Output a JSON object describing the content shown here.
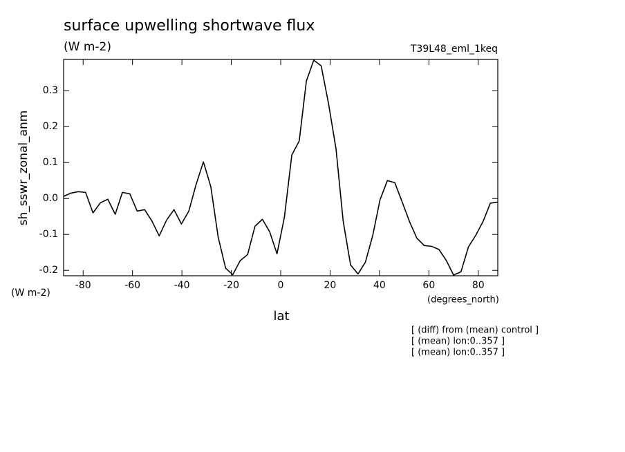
{
  "chart_data": {
    "type": "line",
    "title": "surface upwelling shortwave flux",
    "subtitle": "(W m-2)",
    "dataset": "T39L48_eml_1keq",
    "ylabel": "sh_sswr_zonal_anm",
    "yunits": "(W m-2)",
    "xlabel": "lat",
    "xunits": "(degrees_north)",
    "notes": [
      "[ (diff) from (mean) control ]",
      "[ (mean) lon:0..357 ]",
      "[ (mean) lon:0..357 ]"
    ],
    "x": [
      -87.9,
      -84.9,
      -81.9,
      -79,
      -76,
      -73,
      -70,
      -67,
      -64.1,
      -61.1,
      -58.1,
      -55.1,
      -52.1,
      -49.2,
      -46.2,
      -43.2,
      -40.2,
      -37.2,
      -34.3,
      -31.3,
      -28.3,
      -25.3,
      -22.3,
      -19.4,
      -16.4,
      -13.4,
      -10.4,
      -7.4,
      -4.5,
      -1.5,
      1.5,
      4.5,
      7.5,
      10.4,
      13.4,
      16.4,
      19.4,
      22.4,
      25.3,
      28.3,
      31.3,
      34.3,
      37.3,
      40.2,
      43.2,
      46.2,
      49.2,
      52.2,
      55.1,
      58.1,
      61.1,
      64.1,
      67.1,
      70,
      73,
      76,
      79,
      82,
      84.9,
      87.9
    ],
    "series": [
      {
        "color": "#000000",
        "values": [
          0.006,
          0.015,
          0.019,
          0.017,
          -0.04,
          -0.012,
          -0.002,
          -0.044,
          0.017,
          0.013,
          -0.035,
          -0.031,
          -0.063,
          -0.104,
          -0.06,
          -0.031,
          -0.071,
          -0.035,
          0.038,
          0.102,
          0.033,
          -0.108,
          -0.194,
          -0.212,
          -0.173,
          -0.156,
          -0.077,
          -0.058,
          -0.092,
          -0.154,
          -0.052,
          0.121,
          0.16,
          0.327,
          0.385,
          0.369,
          0.263,
          0.138,
          -0.063,
          -0.185,
          -0.21,
          -0.177,
          -0.102,
          -0.004,
          0.05,
          0.044,
          -0.01,
          -0.065,
          -0.11,
          -0.131,
          -0.133,
          -0.142,
          -0.173,
          -0.213,
          -0.204,
          -0.135,
          -0.102,
          -0.063,
          -0.013,
          -0.01
        ]
      }
    ],
    "xlim": [
      -87.9,
      87.9
    ],
    "ylim": [
      -0.215,
      0.387
    ],
    "xticks": [
      -80,
      -60,
      -40,
      -20,
      0,
      20,
      40,
      60,
      80
    ],
    "yticks": [
      -0.2,
      -0.1,
      {
        "value": 0,
        "label": "0.0"
      },
      0.1,
      0.2,
      0.3
    ]
  }
}
